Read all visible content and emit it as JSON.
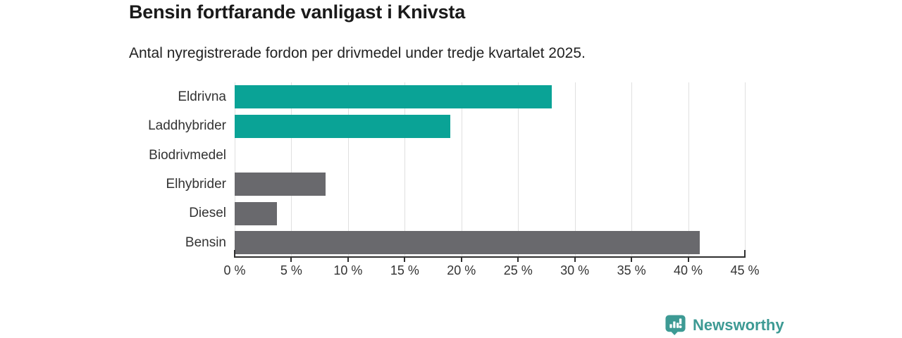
{
  "header": {
    "title": "Bensin fortfarande vanligast i Knivsta",
    "subtitle": "Antal nyregistrerade fordon per drivmedel under tredje kvartalet 2025."
  },
  "chart_data": {
    "type": "bar",
    "orientation": "horizontal",
    "categories": [
      "Eldrivna",
      "Laddhybrider",
      "Biodrivmedel",
      "Elhybrider",
      "Diesel",
      "Bensin"
    ],
    "values": [
      28,
      19,
      0,
      8,
      3.7,
      41
    ],
    "unit": "%",
    "xlim": [
      0,
      45
    ],
    "x_tick_values": [
      0,
      5,
      10,
      15,
      20,
      25,
      30,
      35,
      40,
      45
    ],
    "x_tick_labels": [
      "0 %",
      "5 %",
      "10 %",
      "15 %",
      "20 %",
      "25 %",
      "30 %",
      "35 %",
      "40 %",
      "45 %"
    ],
    "bar_colors": [
      "#0aa396",
      "#0aa396",
      "#69696d",
      "#69696d",
      "#69696d",
      "#69696d"
    ],
    "grid": true,
    "legend": "none",
    "title": "Bensin fortfarande vanligast i Knivsta",
    "xlabel": "",
    "ylabel": ""
  },
  "colors": {
    "accent_teal": "#0aa396",
    "neutral_gray": "#69696d",
    "axis": "#2f2f2f",
    "gridline": "#e0e0e0",
    "brand_teal": "#3d9a94"
  },
  "footer": {
    "brand": "Newsworthy",
    "logo_icon": "bar-chart-pin-icon"
  }
}
